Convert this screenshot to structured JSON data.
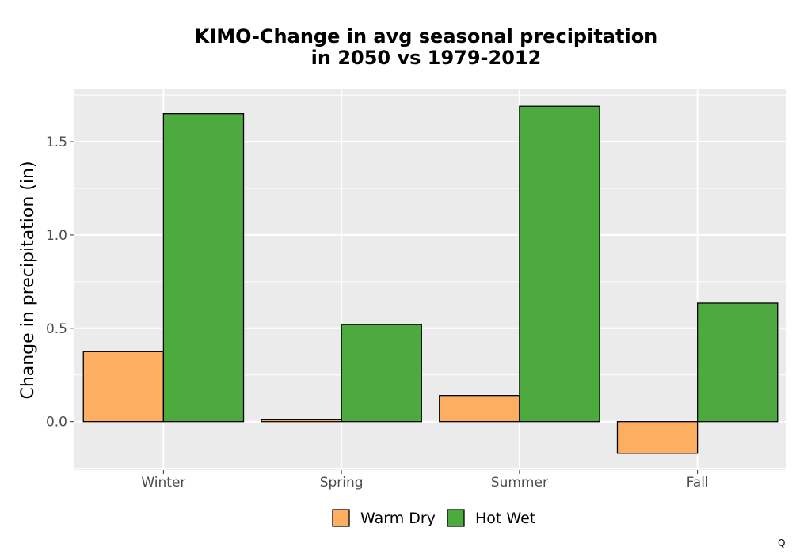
{
  "chart_data": {
    "type": "bar",
    "title": [
      "KIMO-Change in avg seasonal precipitation",
      "in 2050 vs 1979-2012"
    ],
    "xlabel": "",
    "ylabel": "Change in precipitation (in)",
    "categories": [
      "Winter",
      "Spring",
      "Summer",
      "Fall"
    ],
    "series": [
      {
        "name": "Warm Dry",
        "color": "#fdae61",
        "values": [
          0.375,
          0.01,
          0.14,
          -0.17
        ]
      },
      {
        "name": "Hot Wet",
        "color": "#4daa3f",
        "values": [
          1.65,
          0.52,
          1.69,
          0.635
        ]
      }
    ],
    "ylim": [
      -0.26,
      1.78
    ],
    "yticks": [
      0.0,
      0.5,
      1.0,
      1.5
    ],
    "ytick_labels": [
      "0.0",
      "0.5",
      "1.0",
      "1.5"
    ],
    "grid": true,
    "legend_position": "bottom",
    "panel_background": "#ebebeb"
  },
  "corner_mark": "Q"
}
